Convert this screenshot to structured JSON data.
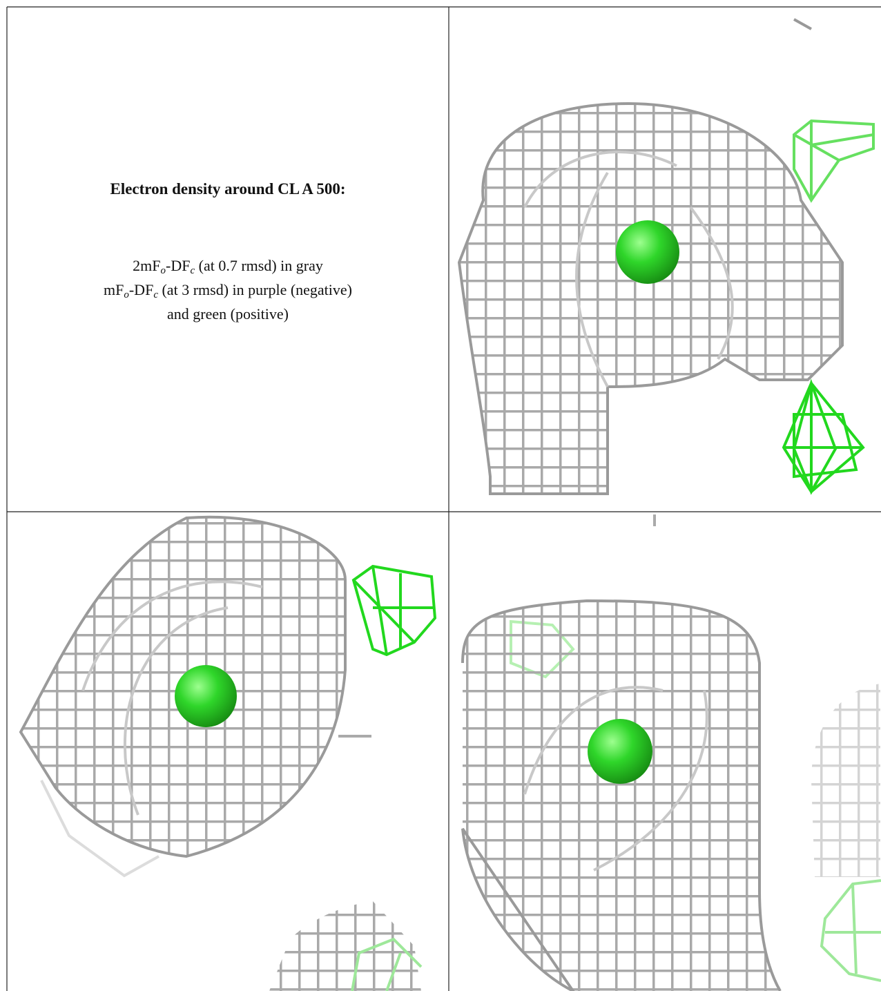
{
  "caption": {
    "title": "Electron density around CL A 500:",
    "lines": [
      [
        "2mF",
        "o",
        "-DF",
        "c",
        " (at 0.7 rmsd) in gray"
      ],
      [
        "mF",
        "o",
        "-DF",
        "c",
        " (at 3 rmsd) in purple (negative)"
      ],
      [
        "and green (positive)"
      ]
    ]
  }
}
